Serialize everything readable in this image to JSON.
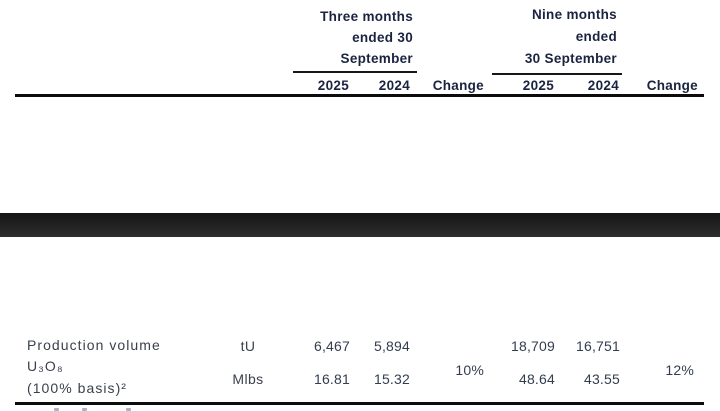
{
  "page": {
    "header": {
      "three_months": {
        "line1": "Three months",
        "line2": "ended 30",
        "line3": "September"
      },
      "nine_months": {
        "line1": "Nine months",
        "line2": "ended",
        "line3": "30 September"
      },
      "cols": {
        "t2025": "2025",
        "t2024": "2024",
        "tchange": "Change",
        "n2025": "2025",
        "n2024": "2024",
        "nchange": "Change"
      }
    },
    "row": {
      "label_line1": "Production volume",
      "label_line2": "U₃O₈",
      "label_line3": "(100% basis)²",
      "unit_row1": "tU",
      "unit_row2": "Mlbs",
      "t2025_row1": "6,467",
      "t2024_row1": "5,894",
      "t2025_row2": "16.81",
      "t2024_row2": "15.32",
      "t_change": "10%",
      "n2025_row1": "18,709",
      "n2024_row1": "16,751",
      "n2025_row2": "48.64",
      "n2024_row2": "43.55",
      "n_change": "12%"
    },
    "colors": {
      "header_text": "#1a2340",
      "body_text": "#3b414b",
      "number_text": "#333d4f",
      "rule": "#0c0c0c",
      "band_top": "#151515",
      "band_bottom": "#2d2d2d"
    }
  }
}
